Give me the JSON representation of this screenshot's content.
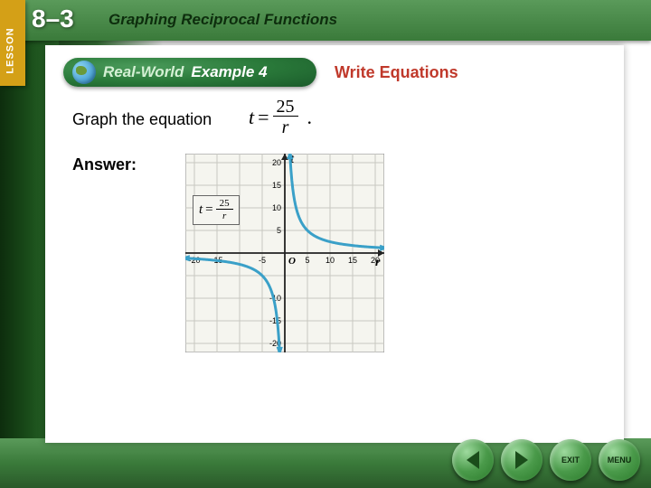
{
  "lesson": {
    "tab_label": "LESSON",
    "number": "8–3",
    "title": "Graphing Reciprocal Functions"
  },
  "example_badge": {
    "prefix": "Real-World",
    "text": "Example 4"
  },
  "topic": "Write Equations",
  "instruction": "Graph the equation",
  "equation": {
    "lhs": "t",
    "eq": "=",
    "numerator": "25",
    "denominator": "r"
  },
  "period": ".",
  "answer_label": "Answer:",
  "graph": {
    "type": "reciprocal",
    "k": 25,
    "x_axis_var": "r",
    "y_axis_var": "t",
    "xlim": [
      -22,
      22
    ],
    "ylim": [
      -22,
      22
    ],
    "tick_step": 5,
    "x_tick_labels": [
      "-20",
      "-15",
      "-5",
      "5",
      "10",
      "15",
      "20"
    ],
    "y_tick_labels": [
      "20",
      "15",
      "10",
      "5",
      "-10",
      "-15",
      "-20"
    ],
    "origin_label": "O",
    "curve_color": "#3aa0c8",
    "curve_width": 3,
    "arrow_color": "#3aa0c8",
    "grid_color": "#c8c8c0",
    "axis_color": "#222222",
    "background_color": "#f5f5ef",
    "axis_label_fontsize": 14,
    "tick_fontsize": 9,
    "eq_box": {
      "lhs": "t",
      "eq": "=",
      "numerator": "25",
      "denominator": "r"
    }
  },
  "nav": {
    "prev": "",
    "next": "",
    "exit": "EXIT",
    "menu": "MENU"
  }
}
